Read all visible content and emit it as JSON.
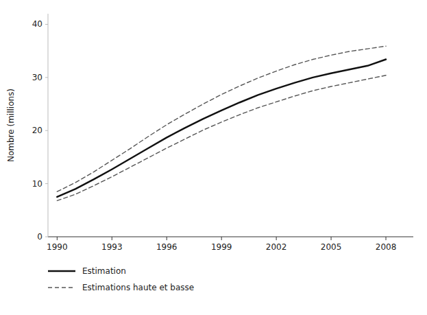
{
  "chart_data": {
    "type": "line",
    "x": [
      1990,
      1991,
      1992,
      1993,
      1994,
      1995,
      1996,
      1997,
      1998,
      1999,
      2000,
      2001,
      2002,
      2003,
      2004,
      2005,
      2006,
      2007,
      2008
    ],
    "series": [
      {
        "name": "Estimations haute et basse",
        "color": "#555555",
        "line_style": "dashed",
        "values": [
          8.5,
          10.2,
          12.2,
          14.4,
          16.6,
          18.9,
          21.1,
          23.1,
          25.0,
          26.8,
          28.4,
          29.9,
          31.2,
          32.4,
          33.4,
          34.2,
          34.9,
          35.4,
          35.9
        ]
      },
      {
        "name": "Estimations haute et basse",
        "color": "#555555",
        "line_style": "dashed",
        "values": [
          6.8,
          8.0,
          9.6,
          11.3,
          13.1,
          14.9,
          16.7,
          18.4,
          20.1,
          21.6,
          23.0,
          24.3,
          25.4,
          26.5,
          27.5,
          28.3,
          29.0,
          29.7,
          30.4
        ]
      },
      {
        "name": "Estimation",
        "color": "#111111",
        "line_style": "solid",
        "values": [
          7.5,
          9.0,
          10.8,
          12.7,
          14.7,
          16.7,
          18.7,
          20.5,
          22.2,
          23.8,
          25.3,
          26.7,
          27.9,
          29.0,
          30.0,
          30.8,
          31.5,
          32.2,
          33.4
        ]
      }
    ],
    "ylabel": "Nombre (millions)",
    "xlim": [
      1989.5,
      2009.5
    ],
    "xticks": [
      1990,
      1993,
      1996,
      1999,
      2002,
      2005,
      2008
    ],
    "ylim": [
      0,
      42
    ],
    "yticks": [
      0,
      10,
      20,
      30,
      40
    ],
    "grid": false,
    "legend": "bottom"
  }
}
